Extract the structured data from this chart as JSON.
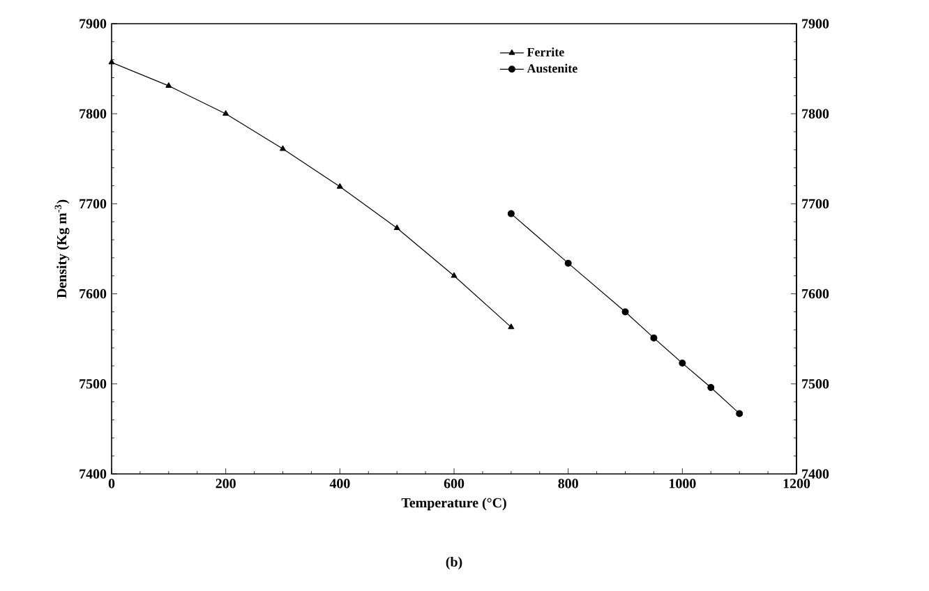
{
  "chart_data": {
    "type": "line",
    "xlabel": "Temperature (°C)",
    "ylabel": "Density (Kg m$^{-3}$)",
    "annotations": [
      "(b)"
    ],
    "xlim": [
      0,
      1200
    ],
    "xticks": [
      0,
      200,
      400,
      600,
      800,
      1000,
      1200
    ],
    "ylim": [
      7400,
      7900
    ],
    "yticks": [
      7400,
      7500,
      7600,
      7700,
      7800,
      7900
    ],
    "y2lim": [
      7400,
      7900
    ],
    "y2ticks": [
      7400,
      7500,
      7600,
      7700,
      7800,
      7900
    ],
    "legend": "top right",
    "grid": false,
    "line_style": "solid",
    "series": [
      {
        "name": "Ferrite",
        "color": "#000000",
        "marker": "triangle",
        "x": [
          0,
          100,
          200,
          300,
          400,
          500,
          600,
          700
        ],
        "values": [
          7857,
          7831,
          7800,
          7761,
          7719,
          7673,
          7620,
          7563
        ]
      },
      {
        "name": "Austenite",
        "color": "#000000",
        "marker": "circle",
        "x": [
          700,
          800,
          900,
          950,
          1000,
          1050,
          1100
        ],
        "values": [
          7689,
          7634,
          7580,
          7551,
          7523,
          7496,
          7467
        ]
      }
    ]
  }
}
